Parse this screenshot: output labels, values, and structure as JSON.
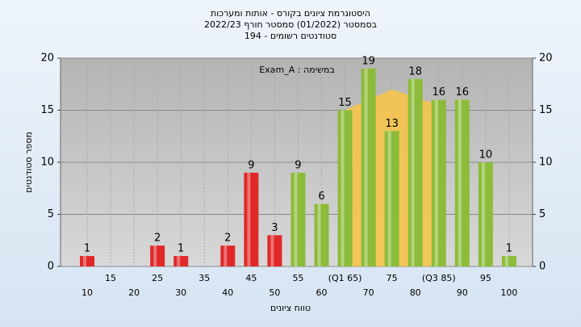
{
  "chart_data": {
    "type": "bar",
    "title": "היסטוגרמת ציונים בקורס - אותות ומערכות",
    "subtitle": "בסמסטר (01/2022) סמסטר חורף 2022/23",
    "subtitle2": "סטודנטים רשומים - 194",
    "annotation": "במשימה : Exam_A",
    "x_label": "טווח ציונים",
    "y_label": "מספר סטודנטים",
    "categories": [
      "10",
      "15",
      "20",
      "25",
      "30",
      "35",
      "40",
      "45",
      "50",
      "55",
      "60",
      "(Q1 65)",
      "70",
      "75",
      "80",
      "(Q3 85)",
      "90",
      "95",
      "100"
    ],
    "values": [
      1,
      0,
      0,
      2,
      1,
      0,
      2,
      9,
      3,
      9,
      6,
      15,
      19,
      13,
      18,
      16,
      16,
      10,
      1
    ],
    "colors": [
      "#e02828",
      "#e02828",
      "#e02828",
      "#e02828",
      "#e02828",
      "#e02828",
      "#e02828",
      "#e02828",
      "#e02828",
      "#8cbc3a",
      "#8cbc3a",
      "#8cbc3a",
      "#8cbc3a",
      "#8cbc3a",
      "#8cbc3a",
      "#8cbc3a",
      "#8cbc3a",
      "#8cbc3a",
      "#8cbc3a"
    ],
    "quartile_area": {
      "x": [
        11,
        11,
        13,
        15,
        15
      ],
      "y": [
        0,
        15,
        17,
        15.5,
        0
      ],
      "color": "#f5c44a"
    },
    "ylim": [
      0,
      20
    ],
    "yticks": [
      0,
      5,
      10,
      15,
      20
    ],
    "y2lim": [
      0,
      20
    ],
    "y2ticks": [
      0,
      5,
      10,
      15,
      20
    ],
    "grid": true
  }
}
